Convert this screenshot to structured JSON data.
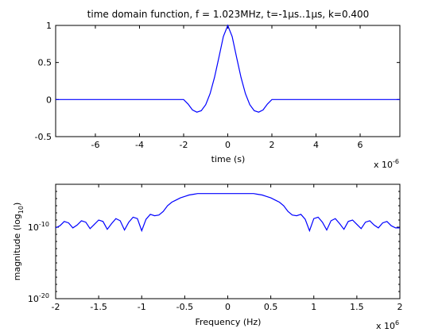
{
  "chart_data": [
    {
      "type": "line",
      "title": "time domain function, f = 1.023MHz, t=-1µs..1µs, k=0.400",
      "xlabel": "time (s)",
      "ylabel": "",
      "x_exponent_label": "x 10",
      "x_exponent_power": "-6",
      "xlim": [
        -7.8,
        7.8
      ],
      "ylim": [
        -0.5,
        1
      ],
      "xticks": [
        -6,
        -4,
        -2,
        0,
        2,
        4,
        6
      ],
      "xtick_labels": [
        "-6",
        "-4",
        "-2",
        "0",
        "2",
        "4",
        "6"
      ],
      "yticks": [
        -0.5,
        0,
        0.5,
        1
      ],
      "ytick_labels": [
        "-0.5",
        "0",
        "0.5",
        "1"
      ],
      "grid": false,
      "series_color": "#0000ff",
      "x": [
        -7.8,
        -2.0,
        -1.8,
        -1.6,
        -1.4,
        -1.2,
        -1.0,
        -0.8,
        -0.6,
        -0.4,
        -0.2,
        0.0,
        0.2,
        0.4,
        0.6,
        0.8,
        1.0,
        1.2,
        1.4,
        1.6,
        1.8,
        2.0,
        7.8
      ],
      "y": [
        0,
        0,
        -0.06,
        -0.14,
        -0.17,
        -0.15,
        -0.07,
        0.08,
        0.3,
        0.57,
        0.85,
        1.0,
        0.85,
        0.57,
        0.3,
        0.08,
        -0.07,
        -0.15,
        -0.17,
        -0.14,
        -0.06,
        0,
        0
      ]
    },
    {
      "type": "line",
      "title": "",
      "xlabel": "Frequency (Hz)",
      "ylabel": "magnitude (log",
      "ylabel_sub": "10",
      "ylabel_suffix": ")",
      "x_exponent_label": "x 10",
      "x_exponent_power": "6",
      "xlim": [
        -2,
        2
      ],
      "ylim_log": [
        -20,
        -4
      ],
      "xticks": [
        -2,
        -1.5,
        -1,
        -0.5,
        0,
        0.5,
        1,
        1.5,
        2
      ],
      "xtick_labels": [
        "-2",
        "-1.5",
        "-1",
        "-0.5",
        "0",
        "0.5",
        "1",
        "1.5",
        "2"
      ],
      "yticks_log": [
        -20,
        -10
      ],
      "ytick_base": "10",
      "ytick_powers": [
        "-20",
        "-10"
      ],
      "grid": false,
      "series_color": "#0000ff",
      "x": [
        -2.0,
        -1.95,
        -1.9,
        -1.85,
        -1.8,
        -1.75,
        -1.7,
        -1.65,
        -1.6,
        -1.55,
        -1.5,
        -1.45,
        -1.4,
        -1.35,
        -1.3,
        -1.25,
        -1.2,
        -1.15,
        -1.1,
        -1.05,
        -1.0,
        -0.95,
        -0.9,
        -0.85,
        -0.8,
        -0.75,
        -0.7,
        -0.65,
        -0.6,
        -0.55,
        -0.5,
        -0.45,
        -0.4,
        -0.35,
        -0.3,
        -0.25,
        -0.2,
        -0.15,
        -0.1,
        -0.05,
        0.0,
        0.05,
        0.1,
        0.15,
        0.2,
        0.25,
        0.3,
        0.35,
        0.4,
        0.45,
        0.5,
        0.55,
        0.6,
        0.65,
        0.7,
        0.75,
        0.8,
        0.85,
        0.9,
        0.95,
        1.0,
        1.05,
        1.1,
        1.15,
        1.2,
        1.25,
        1.3,
        1.35,
        1.4,
        1.45,
        1.5,
        1.55,
        1.6,
        1.65,
        1.7,
        1.75,
        1.8,
        1.85,
        1.9,
        1.95,
        2.0
      ],
      "y_log10": [
        -10.1,
        -9.8,
        -9.2,
        -9.4,
        -10.1,
        -9.7,
        -9.1,
        -9.3,
        -10.2,
        -9.6,
        -9.0,
        -9.2,
        -10.3,
        -9.5,
        -8.8,
        -9.1,
        -10.4,
        -9.3,
        -8.6,
        -8.8,
        -10.5,
        -8.9,
        -8.2,
        -8.4,
        -8.3,
        -7.8,
        -7.0,
        -6.5,
        -6.2,
        -5.9,
        -5.7,
        -5.5,
        -5.4,
        -5.3,
        -5.3,
        -5.3,
        -5.3,
        -5.3,
        -5.3,
        -5.3,
        -5.3,
        -5.3,
        -5.3,
        -5.3,
        -5.3,
        -5.3,
        -5.3,
        -5.4,
        -5.5,
        -5.7,
        -5.9,
        -6.2,
        -6.5,
        -7.0,
        -7.8,
        -8.3,
        -8.4,
        -8.2,
        -8.9,
        -10.5,
        -8.8,
        -8.6,
        -9.3,
        -10.4,
        -9.1,
        -8.8,
        -9.5,
        -10.3,
        -9.2,
        -9.0,
        -9.6,
        -10.2,
        -9.3,
        -9.1,
        -9.7,
        -10.1,
        -9.4,
        -9.2,
        -9.8,
        -10.1,
        -10.1
      ]
    }
  ]
}
